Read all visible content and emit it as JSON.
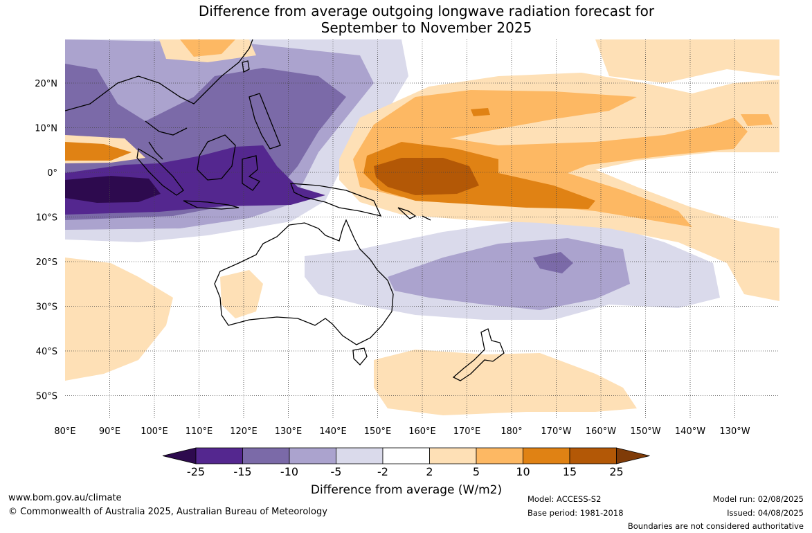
{
  "title_line1": "Difference from average outgoing longwave radiation forecast for",
  "title_line2": "September to November 2025",
  "lat_labels": [
    "20°N",
    "10°N",
    "0°",
    "10°S",
    "20°S",
    "30°S",
    "40°S",
    "50°S"
  ],
  "lon_labels": [
    "80°E",
    "90°E",
    "100°E",
    "110°E",
    "120°E",
    "130°E",
    "140°E",
    "150°E",
    "160°E",
    "170°E",
    "180°",
    "170°W",
    "160°W",
    "150°W",
    "140°W",
    "130°W"
  ],
  "colorbar": {
    "ticks": [
      "-25",
      "-15",
      "-10",
      "-5",
      "-2",
      "2",
      "5",
      "10",
      "15",
      "25"
    ],
    "colors": [
      "#2d0a4e",
      "#54278f",
      "#7b6aa8",
      "#aba3ce",
      "#dadaeb",
      "#ffffff",
      "#fee0b6",
      "#fdb863",
      "#e08214",
      "#b35806",
      "#7f3b08"
    ],
    "title": "Difference from average (W/m2)"
  },
  "footer": {
    "website": "www.bom.gov.au/climate",
    "copyright": "© Commonwealth of Australia 2025, Australian Bureau of Meteorology",
    "model": "Model: ACCESS-S2",
    "base_period": "Base period: 1981-2018",
    "model_run": "Model run: 02/08/2025",
    "issued": "Issued: 04/08/2025",
    "boundaries": "Boundaries are not considered authoritative"
  }
}
